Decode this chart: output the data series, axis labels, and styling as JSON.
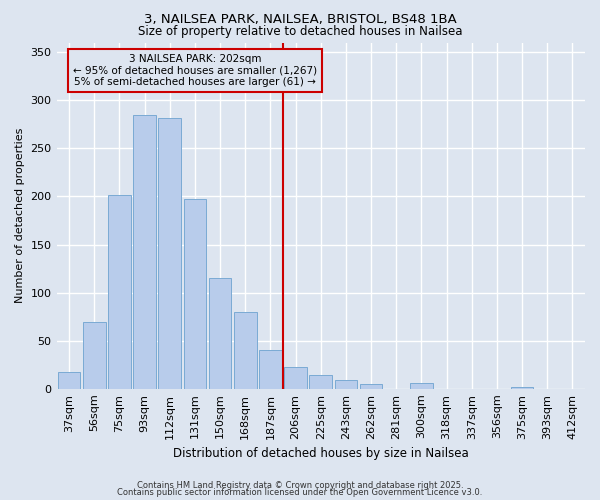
{
  "title": "3, NAILSEA PARK, NAILSEA, BRISTOL, BS48 1BA",
  "subtitle": "Size of property relative to detached houses in Nailsea",
  "xlabel": "Distribution of detached houses by size in Nailsea",
  "ylabel": "Number of detached properties",
  "bar_labels": [
    "37sqm",
    "56sqm",
    "75sqm",
    "93sqm",
    "112sqm",
    "131sqm",
    "150sqm",
    "168sqm",
    "187sqm",
    "206sqm",
    "225sqm",
    "243sqm",
    "262sqm",
    "281sqm",
    "300sqm",
    "318sqm",
    "337sqm",
    "356sqm",
    "375sqm",
    "393sqm",
    "412sqm"
  ],
  "bar_values": [
    17,
    69,
    201,
    285,
    282,
    197,
    115,
    80,
    40,
    23,
    14,
    9,
    5,
    0,
    6,
    0,
    0,
    0,
    2,
    0,
    0
  ],
  "bar_color": "#b8cceb",
  "bar_edge_color": "#7aaad4",
  "background_color": "#dde5f0",
  "grid_color": "#ffffff",
  "vline_x_idx": 9,
  "vline_color": "#cc0000",
  "annotation_line1": "3 NAILSEA PARK: 202sqm",
  "annotation_line2": "← 95% of detached houses are smaller (1,267)",
  "annotation_line3": "5% of semi-detached houses are larger (61) →",
  "annotation_box_color": "#cc0000",
  "ylim": [
    0,
    360
  ],
  "yticks": [
    0,
    50,
    100,
    150,
    200,
    250,
    300,
    350
  ],
  "footer1": "Contains HM Land Registry data © Crown copyright and database right 2025.",
  "footer2": "Contains public sector information licensed under the Open Government Licence v3.0."
}
